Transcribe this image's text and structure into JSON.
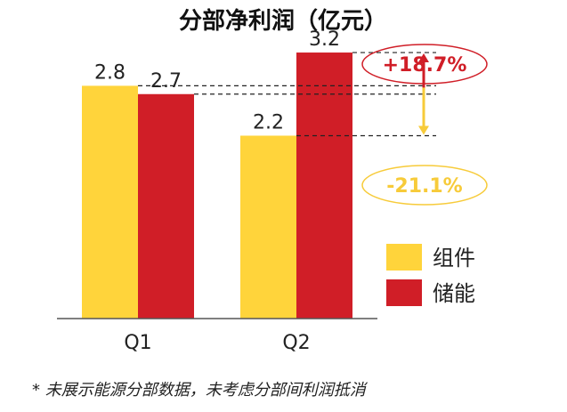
{
  "chart_data": {
    "type": "bar",
    "title": "分部净利润（亿元）",
    "categories": [
      "Q1",
      "Q2"
    ],
    "series": [
      {
        "name": "组件",
        "values": [
          2.8,
          2.2
        ],
        "color": "#FFD43B"
      },
      {
        "name": "储能",
        "values": [
          2.7,
          3.2
        ],
        "color": "#D01E27"
      }
    ],
    "value_labels": [
      [
        "2.8",
        "2.2"
      ],
      [
        "2.7",
        "3.2"
      ]
    ],
    "ylim": [
      0,
      3.65
    ],
    "grid": false,
    "legend_position": "right",
    "annotations": [
      {
        "text": "+18.7%",
        "series": "储能",
        "color": "#D01E27",
        "direction": "up"
      },
      {
        "text": "-21.1%",
        "series": "组件",
        "color": "#F7CB3A",
        "direction": "down"
      }
    ]
  },
  "footnote": "* 未展示能源分部数据，未考虑分部间利润抵消"
}
